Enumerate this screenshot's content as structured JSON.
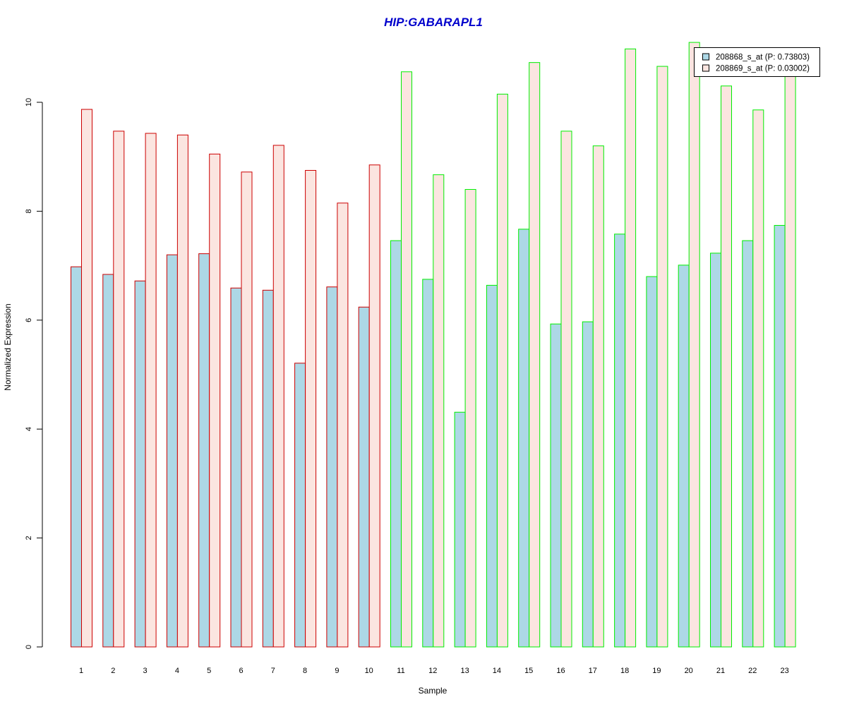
{
  "chart_data": {
    "type": "bar",
    "title": "HIP:GABARAPL1",
    "xlabel": "Sample",
    "ylabel": "Normalized Expression",
    "ylim": [
      0,
      11.5
    ],
    "yticks": [
      0,
      2,
      4,
      6,
      8,
      10
    ],
    "categories": [
      "1",
      "2",
      "3",
      "4",
      "5",
      "6",
      "7",
      "8",
      "9",
      "10",
      "11",
      "12",
      "13",
      "14",
      "15",
      "16",
      "17",
      "18",
      "19",
      "20",
      "21",
      "22",
      "23"
    ],
    "series": [
      {
        "name": "208868_s_at (P: 0.73803)",
        "fill": "#add8e6",
        "values": [
          6.98,
          6.84,
          6.72,
          7.2,
          7.22,
          6.59,
          6.55,
          5.21,
          6.61,
          6.24,
          7.46,
          6.75,
          4.31,
          6.64,
          7.67,
          5.93,
          5.97,
          7.58,
          6.8,
          7.01,
          7.23,
          7.46,
          7.74
        ]
      },
      {
        "name": "208869_s_at (P: 0.03002)",
        "fill": "#fbe5e0",
        "values": [
          9.87,
          9.47,
          9.43,
          9.4,
          9.05,
          8.72,
          9.21,
          8.75,
          8.15,
          8.85,
          10.56,
          8.67,
          8.4,
          10.15,
          10.73,
          9.47,
          9.2,
          10.98,
          10.66,
          11.1,
          10.3,
          9.86,
          10.6
        ]
      }
    ],
    "group_colors": [
      "#cc0000",
      "#cc0000",
      "#cc0000",
      "#cc0000",
      "#cc0000",
      "#cc0000",
      "#cc0000",
      "#cc0000",
      "#cc0000",
      "#cc0000",
      "#00ee00",
      "#00ee00",
      "#00ee00",
      "#00ee00",
      "#00ee00",
      "#00ee00",
      "#00ee00",
      "#00ee00",
      "#00ee00",
      "#00ee00",
      "#00ee00",
      "#00ee00",
      "#00ee00"
    ],
    "title_color": "#0000cc",
    "legend_position": "top-right",
    "grid": false
  }
}
